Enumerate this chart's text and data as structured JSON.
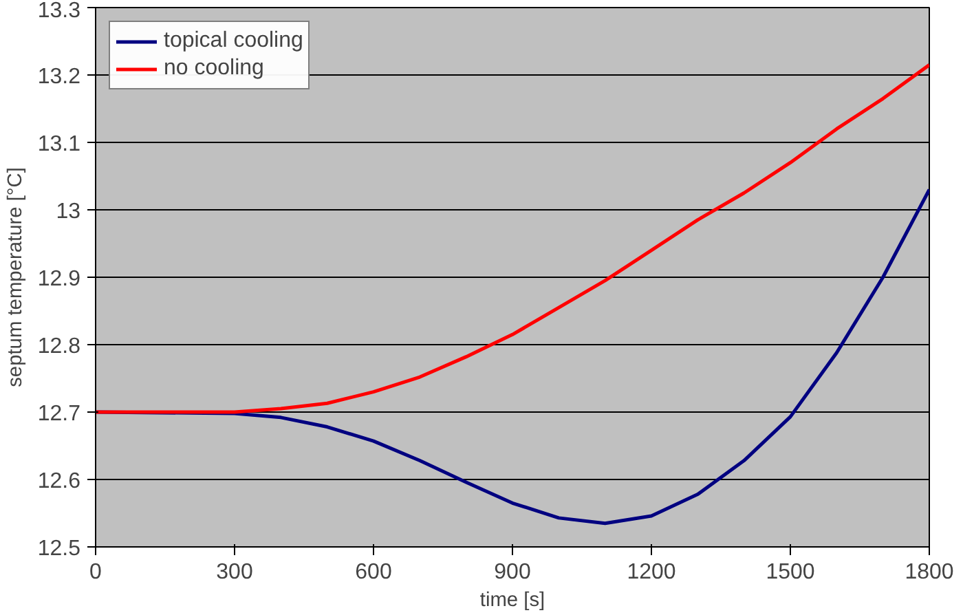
{
  "chart_data": {
    "type": "line",
    "xlabel": "time [s]",
    "ylabel": "septum temperature [°C]",
    "x": [
      0,
      300,
      400,
      500,
      600,
      700,
      800,
      900,
      1000,
      1100,
      1200,
      1300,
      1400,
      1500,
      1600,
      1700,
      1800
    ],
    "series": [
      {
        "name": "topical cooling",
        "color": "#000080",
        "values": [
          12.7,
          12.698,
          12.692,
          12.678,
          12.657,
          12.628,
          12.596,
          12.565,
          12.543,
          12.535,
          12.546,
          12.578,
          12.628,
          12.693,
          12.788,
          12.9,
          13.03
        ]
      },
      {
        "name": "no cooling",
        "color": "#ff0000",
        "values": [
          12.7,
          12.7,
          12.705,
          12.713,
          12.73,
          12.752,
          12.782,
          12.815,
          12.855,
          12.895,
          12.94,
          12.985,
          13.025,
          13.07,
          13.12,
          13.165,
          13.215
        ]
      }
    ],
    "xlim": [
      0,
      1800
    ],
    "xticks": [
      0,
      300,
      600,
      900,
      1200,
      1500,
      1800
    ],
    "ylim": [
      12.5,
      13.3
    ],
    "yticks": [
      12.5,
      12.6,
      12.7,
      12.8,
      12.9,
      13,
      13.1,
      13.2,
      13.3
    ],
    "grid": "y",
    "legend": "top left",
    "marker": "none",
    "line_style": "solid"
  }
}
